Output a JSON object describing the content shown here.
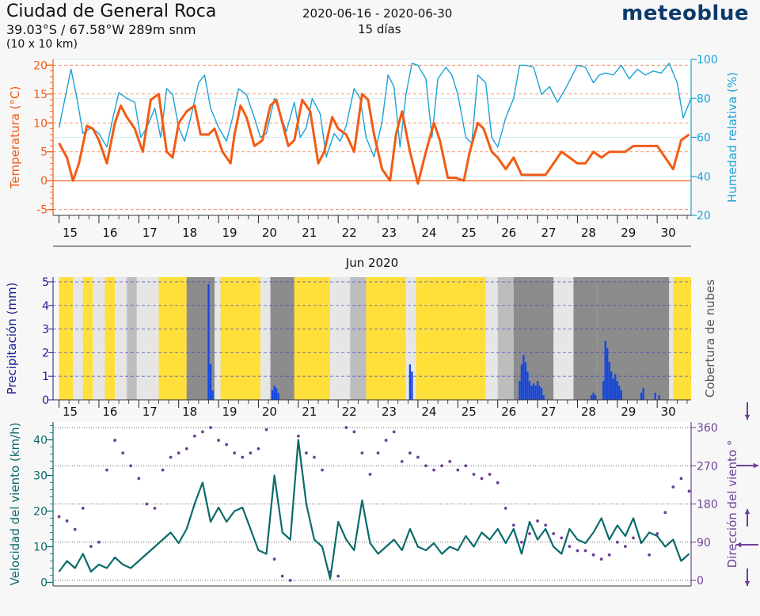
{
  "header": {
    "title": "Ciudad de General Roca",
    "coords": "39.03°S / 67.58°W   289m snm",
    "grid": "(10 x 10 km)",
    "dates": "2020-06-16 - 2020-06-30",
    "days": "15 días",
    "logo": "meteoblue"
  },
  "colors": {
    "temperature": "#f25b14",
    "humidity": "#1aa2d6",
    "precip": "#1447e0",
    "wind_speed": "#0b6b6b",
    "wind_dir": "#6f3f97",
    "sun": "#ffdf3a",
    "cloud_dark": "#8c8c8c",
    "cloud_light": "#e6e6e6"
  },
  "chart_data": [
    {
      "type": "line",
      "title": "",
      "xlabel": "",
      "x_ticks": [
        "15",
        "16",
        "17",
        "18",
        "19",
        "20",
        "21",
        "22",
        "23",
        "24",
        "25",
        "26",
        "27",
        "28",
        "29",
        "30"
      ],
      "ylabel": "Temperatura (°C)",
      "ylim": [
        -6,
        21
      ],
      "y_ticks": [
        "20",
        "15",
        "10",
        "5",
        "0",
        "-5"
      ],
      "y2label": "Humedad relativa (%)",
      "y2lim": [
        20,
        100
      ],
      "y2_ticks": [
        "100",
        "80",
        "60",
        "40",
        "20"
      ],
      "series": [
        {
          "key": "temperature",
          "x": [
            15.0,
            15.2,
            15.35,
            15.5,
            15.7,
            15.85,
            16.0,
            16.2,
            16.4,
            16.55,
            16.7,
            16.9,
            17.1,
            17.3,
            17.5,
            17.7,
            17.85,
            18.0,
            18.2,
            18.4,
            18.55,
            18.75,
            18.9,
            19.1,
            19.3,
            19.4,
            19.55,
            19.7,
            19.9,
            20.1,
            20.3,
            20.45,
            20.6,
            20.75,
            20.9,
            21.1,
            21.3,
            21.5,
            21.65,
            21.85,
            22.0,
            22.2,
            22.4,
            22.6,
            22.75,
            22.9,
            23.1,
            23.3,
            23.45,
            23.6,
            23.8,
            24.0,
            24.2,
            24.4,
            24.55,
            24.75,
            24.95,
            25.15,
            25.3,
            25.5,
            25.65,
            25.85,
            26.0,
            26.2,
            26.4,
            26.6,
            26.8,
            27.0,
            27.2,
            27.4,
            27.6,
            27.8,
            28.0,
            28.2,
            28.4,
            28.6,
            28.8,
            29.0,
            29.2,
            29.4,
            29.6,
            29.8,
            30.0,
            30.2,
            30.4,
            30.6,
            30.8
          ],
          "y": [
            6.5,
            4,
            0,
            3,
            9.5,
            9,
            7,
            3,
            10,
            13,
            11,
            9,
            5,
            14,
            15,
            5,
            4,
            10,
            12,
            13,
            8,
            8,
            9,
            5,
            3,
            8,
            13,
            11,
            6,
            7,
            13,
            14,
            10,
            6,
            7,
            14,
            12,
            3,
            5,
            11,
            9,
            8,
            5,
            15,
            14,
            8,
            2,
            0,
            8,
            12,
            5,
            -0.5,
            5,
            10,
            7,
            0.5,
            0.5,
            0,
            5,
            10,
            9,
            5,
            4,
            2,
            4,
            1,
            1,
            1,
            1,
            3,
            5,
            4,
            3,
            3,
            5,
            4,
            5,
            5,
            5,
            6,
            6,
            6,
            6,
            4,
            2,
            7,
            8
          ]
        },
        {
          "key": "humidity",
          "x": [
            15.0,
            15.15,
            15.3,
            15.45,
            15.6,
            15.8,
            16.0,
            16.2,
            16.35,
            16.5,
            16.7,
            16.9,
            17.05,
            17.2,
            17.4,
            17.55,
            17.7,
            17.85,
            18.0,
            18.15,
            18.3,
            18.5,
            18.65,
            18.8,
            19.0,
            19.2,
            19.35,
            19.5,
            19.7,
            19.9,
            20.05,
            20.2,
            20.4,
            20.55,
            20.7,
            20.9,
            21.05,
            21.2,
            21.35,
            21.55,
            21.7,
            21.9,
            22.05,
            22.2,
            22.4,
            22.55,
            22.7,
            22.9,
            23.1,
            23.25,
            23.4,
            23.55,
            23.7,
            23.85,
            24.0,
            24.2,
            24.35,
            24.5,
            24.7,
            24.85,
            25.0,
            25.2,
            25.35,
            25.5,
            25.7,
            25.85,
            26.0,
            26.2,
            26.4,
            26.55,
            26.7,
            26.9,
            27.1,
            27.3,
            27.5,
            27.7,
            27.85,
            28.0,
            28.2,
            28.4,
            28.55,
            28.7,
            28.9,
            29.1,
            29.3,
            29.5,
            29.7,
            29.9,
            30.1,
            30.3,
            30.5,
            30.65,
            30.85
          ],
          "y": [
            65,
            80,
            95,
            80,
            62,
            65,
            62,
            55,
            70,
            83,
            80,
            78,
            60,
            65,
            75,
            60,
            85,
            82,
            65,
            58,
            70,
            88,
            92,
            75,
            65,
            58,
            70,
            85,
            82,
            70,
            60,
            62,
            80,
            72,
            63,
            78,
            60,
            65,
            80,
            72,
            50,
            62,
            58,
            66,
            85,
            80,
            60,
            50,
            68,
            92,
            86,
            55,
            82,
            98,
            97,
            90,
            60,
            90,
            96,
            92,
            82,
            60,
            57,
            92,
            88,
            60,
            55,
            70,
            80,
            97,
            97,
            96,
            82,
            86,
            78,
            85,
            91,
            97,
            96,
            88,
            92,
            93,
            92,
            97,
            90,
            95,
            92,
            94,
            93,
            98,
            88,
            70,
            80
          ]
        }
      ]
    },
    {
      "type": "bar",
      "title": "Jun 2020",
      "xlabel": "",
      "x_ticks": [
        "15",
        "16",
        "17",
        "18",
        "19",
        "20",
        "21",
        "22",
        "23",
        "24",
        "25",
        "26",
        "27",
        "28",
        "29",
        "30"
      ],
      "ylabel": "Precipitación (mm)",
      "ylim": [
        0,
        5.2
      ],
      "y_ticks": [
        "5",
        "4",
        "3",
        "2",
        "1",
        "0"
      ],
      "y2label": "Cobertura de nubes",
      "cloud_cover_bands": [
        {
          "from": 15.0,
          "to": 15.35,
          "level": "sun"
        },
        {
          "from": 15.35,
          "to": 15.6,
          "level": "light"
        },
        {
          "from": 15.6,
          "to": 15.85,
          "level": "sun"
        },
        {
          "from": 15.85,
          "to": 16.15,
          "level": "light"
        },
        {
          "from": 16.15,
          "to": 16.4,
          "level": "sun"
        },
        {
          "from": 16.4,
          "to": 16.7,
          "level": "light"
        },
        {
          "from": 16.7,
          "to": 16.95,
          "level": "mid"
        },
        {
          "from": 16.95,
          "to": 17.5,
          "level": "light"
        },
        {
          "from": 17.5,
          "to": 18.2,
          "level": "sun"
        },
        {
          "from": 18.2,
          "to": 18.9,
          "level": "dark"
        },
        {
          "from": 18.9,
          "to": 19.05,
          "level": "light"
        },
        {
          "from": 19.05,
          "to": 20.05,
          "level": "sun"
        },
        {
          "from": 20.05,
          "to": 20.3,
          "level": "light"
        },
        {
          "from": 20.3,
          "to": 20.9,
          "level": "dark"
        },
        {
          "from": 20.9,
          "to": 21.8,
          "level": "sun"
        },
        {
          "from": 21.8,
          "to": 22.3,
          "level": "light"
        },
        {
          "from": 22.3,
          "to": 22.7,
          "level": "mid"
        },
        {
          "from": 22.7,
          "to": 23.7,
          "level": "sun"
        },
        {
          "from": 23.7,
          "to": 23.95,
          "level": "light"
        },
        {
          "from": 23.95,
          "to": 25.7,
          "level": "sun"
        },
        {
          "from": 25.7,
          "to": 26.0,
          "level": "light"
        },
        {
          "from": 26.0,
          "to": 26.4,
          "level": "mid"
        },
        {
          "from": 26.4,
          "to": 27.4,
          "level": "dark"
        },
        {
          "from": 27.4,
          "to": 27.9,
          "level": "light"
        },
        {
          "from": 27.9,
          "to": 28.5,
          "level": "dark"
        },
        {
          "from": 28.5,
          "to": 30.3,
          "level": "dark"
        },
        {
          "from": 30.3,
          "to": 30.4,
          "level": "light"
        },
        {
          "from": 30.4,
          "to": 30.85,
          "level": "sun"
        }
      ],
      "series": [
        {
          "name": "",
          "x": [
            18.75,
            18.8,
            18.85,
            20.35,
            20.4,
            20.45,
            20.5,
            23.8,
            23.85,
            26.55,
            26.6,
            26.65,
            26.7,
            26.75,
            26.8,
            26.85,
            26.9,
            26.95,
            27.0,
            27.05,
            27.1,
            27.15,
            28.35,
            28.4,
            28.45,
            28.65,
            28.7,
            28.75,
            28.8,
            28.85,
            28.9,
            28.95,
            29.0,
            29.05,
            29.1,
            29.6,
            29.65,
            29.95,
            30.05
          ],
          "values": [
            4.9,
            1.5,
            0.4,
            0.4,
            0.6,
            0.5,
            0.3,
            1.5,
            1.2,
            0.8,
            1.5,
            1.9,
            1.6,
            1.2,
            0.8,
            0.6,
            0.7,
            0.6,
            0.8,
            0.6,
            0.5,
            0.2,
            0.2,
            0.3,
            0.2,
            0.8,
            2.5,
            2.2,
            1.6,
            1.2,
            0.9,
            1.1,
            0.8,
            0.6,
            0.4,
            0.3,
            0.5,
            0.3,
            0.2
          ]
        }
      ]
    },
    {
      "type": "line",
      "title": "",
      "xlabel": "",
      "ylabel": "Velocidad del viento (km/h)",
      "ylim": [
        -1,
        45
      ],
      "y_ticks": [
        "40",
        "30",
        "20",
        "10",
        "0"
      ],
      "y2label": "Dirección del viento °",
      "y2lim": [
        0,
        360
      ],
      "y2_ticks": [
        "360",
        "270",
        "180",
        "90",
        "0"
      ],
      "series": [
        {
          "key": "wind_speed",
          "x": [
            15.0,
            15.2,
            15.4,
            15.6,
            15.8,
            16.0,
            16.2,
            16.4,
            16.6,
            16.8,
            17.0,
            17.2,
            17.4,
            17.6,
            17.8,
            18.0,
            18.2,
            18.4,
            18.6,
            18.8,
            19.0,
            19.2,
            19.4,
            19.6,
            19.8,
            20.0,
            20.2,
            20.4,
            20.6,
            20.8,
            21.0,
            21.2,
            21.4,
            21.6,
            21.8,
            22.0,
            22.2,
            22.4,
            22.6,
            22.8,
            23.0,
            23.2,
            23.4,
            23.6,
            23.8,
            24.0,
            24.2,
            24.4,
            24.6,
            24.8,
            25.0,
            25.2,
            25.4,
            25.6,
            25.8,
            26.0,
            26.2,
            26.4,
            26.6,
            26.8,
            27.0,
            27.2,
            27.4,
            27.6,
            27.8,
            28.0,
            28.2,
            28.4,
            28.6,
            28.8,
            29.0,
            29.2,
            29.4,
            29.6,
            29.8,
            30.0,
            30.2,
            30.4,
            30.6,
            30.8
          ],
          "y": [
            3,
            6,
            4,
            8,
            3,
            5,
            4,
            7,
            5,
            4,
            6,
            8,
            10,
            12,
            14,
            11,
            15,
            22,
            28,
            17,
            21,
            17,
            20,
            21,
            15,
            9,
            8,
            30,
            14,
            12,
            40,
            22,
            12,
            10,
            1,
            17,
            12,
            9,
            23,
            11,
            8,
            10,
            12,
            9,
            15,
            10,
            9,
            11,
            8,
            10,
            9,
            13,
            10,
            14,
            12,
            15,
            11,
            15,
            8,
            17,
            12,
            15,
            10,
            8,
            15,
            12,
            11,
            14,
            18,
            12,
            16,
            13,
            18,
            11,
            14,
            13,
            10,
            12,
            6,
            8
          ]
        },
        {
          "key": "wind_dir",
          "x": [
            15.0,
            15.2,
            15.4,
            15.6,
            15.8,
            16.0,
            16.2,
            16.4,
            16.6,
            16.8,
            17.0,
            17.2,
            17.4,
            17.6,
            17.8,
            18.0,
            18.2,
            18.4,
            18.6,
            18.8,
            19.0,
            19.2,
            19.4,
            19.6,
            19.8,
            20.0,
            20.2,
            20.4,
            20.6,
            20.8,
            21.0,
            21.2,
            21.4,
            21.6,
            21.8,
            22.0,
            22.2,
            22.4,
            22.6,
            22.8,
            23.0,
            23.2,
            23.4,
            23.6,
            23.8,
            24.0,
            24.2,
            24.4,
            24.6,
            24.8,
            25.0,
            25.2,
            25.4,
            25.6,
            25.8,
            26.0,
            26.2,
            26.4,
            26.6,
            26.8,
            27.0,
            27.2,
            27.4,
            27.6,
            27.8,
            28.0,
            28.2,
            28.4,
            28.6,
            28.8,
            29.0,
            29.2,
            29.4,
            29.6,
            29.8,
            30.0,
            30.2,
            30.4,
            30.6,
            30.8
          ],
          "y": [
            150,
            140,
            120,
            170,
            80,
            90,
            260,
            330,
            300,
            270,
            240,
            180,
            170,
            260,
            290,
            300,
            310,
            340,
            350,
            360,
            330,
            320,
            300,
            290,
            300,
            310,
            355,
            50,
            10,
            0,
            340,
            300,
            290,
            260,
            20,
            10,
            360,
            350,
            300,
            250,
            300,
            330,
            350,
            280,
            300,
            290,
            270,
            260,
            270,
            280,
            260,
            270,
            250,
            240,
            250,
            230,
            170,
            130,
            90,
            110,
            140,
            130,
            110,
            100,
            80,
            70,
            70,
            60,
            50,
            60,
            90,
            80,
            100,
            90,
            60,
            110,
            160,
            220,
            240,
            210
          ]
        }
      ]
    }
  ]
}
